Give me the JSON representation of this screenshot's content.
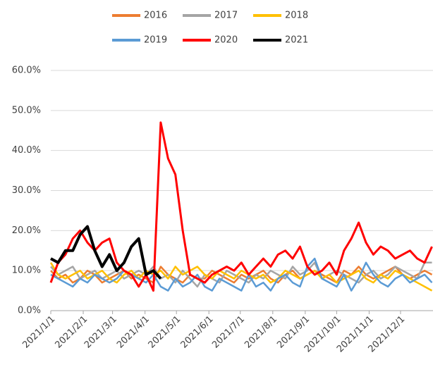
{
  "chart_data": {
    "type": "line",
    "x": [
      0,
      7,
      14,
      21,
      28,
      35,
      42,
      49,
      56,
      63,
      70,
      77,
      84,
      91,
      98,
      105,
      112,
      119,
      126,
      133,
      140,
      147,
      154,
      161,
      168,
      175,
      182,
      189,
      196,
      203,
      210,
      217,
      224,
      231,
      238,
      245,
      252,
      259,
      266,
      273,
      280,
      287,
      294,
      301,
      308,
      315,
      322,
      329,
      336,
      343,
      350,
      357,
      364
    ],
    "xlim": [
      0,
      365
    ],
    "xticks": [
      {
        "value": 0,
        "label": "2021/1/1"
      },
      {
        "value": 31,
        "label": "2021/2/1"
      },
      {
        "value": 59,
        "label": "2021/3/1"
      },
      {
        "value": 90,
        "label": "2021/4/1"
      },
      {
        "value": 120,
        "label": "2021/5/1"
      },
      {
        "value": 151,
        "label": "2021/6/1"
      },
      {
        "value": 181,
        "label": "2021/7/1"
      },
      {
        "value": 212,
        "label": "2021/8/1"
      },
      {
        "value": 243,
        "label": "2021/9/1"
      },
      {
        "value": 273,
        "label": "2021/10/1"
      },
      {
        "value": 304,
        "label": "2021/11/1"
      },
      {
        "value": 334,
        "label": "2021/12/1"
      }
    ],
    "ylim": [
      0,
      60
    ],
    "yticks": [
      {
        "value": 0,
        "label": "0.0%"
      },
      {
        "value": 10,
        "label": "10.0%"
      },
      {
        "value": 20,
        "label": "20.0%"
      },
      {
        "value": 30,
        "label": "30.0%"
      },
      {
        "value": 40,
        "label": "40.0%"
      },
      {
        "value": 50,
        "label": "50.0%"
      },
      {
        "value": 60,
        "label": "60.0%"
      }
    ],
    "grid": true,
    "legend": "top",
    "series": [
      {
        "name": "2016",
        "color": "#ED7D31",
        "values": [
          10,
          8,
          9,
          7,
          8,
          10,
          9,
          7,
          8,
          9,
          10,
          8,
          9,
          8,
          7,
          11,
          9,
          8,
          7,
          9,
          8,
          8,
          10,
          9,
          8,
          7,
          9,
          8,
          9,
          10,
          8,
          7,
          9,
          10,
          8,
          9,
          10,
          9,
          8,
          7,
          10,
          9,
          11,
          9,
          8,
          9,
          10,
          11,
          9,
          8,
          9,
          10,
          9
        ]
      },
      {
        "name": "2017",
        "color": "#A5A5A5",
        "values": [
          11,
          9,
          10,
          11,
          8,
          9,
          10,
          8,
          9,
          10,
          8,
          9,
          10,
          9,
          11,
          8,
          9,
          7,
          10,
          8,
          6,
          9,
          8,
          7,
          10,
          9,
          8,
          7,
          9,
          8,
          10,
          9,
          8,
          11,
          9,
          10,
          12,
          8,
          9,
          10,
          9,
          8,
          7,
          9,
          10,
          8,
          9,
          11,
          10,
          9,
          8,
          12,
          12
        ]
      },
      {
        "name": "2018",
        "color": "#FFC000",
        "values": [
          12,
          9,
          8,
          9,
          10,
          8,
          9,
          10,
          8,
          7,
          9,
          10,
          8,
          10,
          9,
          10,
          8,
          11,
          9,
          10,
          11,
          9,
          8,
          10,
          9,
          8,
          10,
          9,
          8,
          9,
          7,
          8,
          10,
          9,
          8,
          9,
          10,
          8,
          9,
          7,
          8,
          9,
          10,
          8,
          7,
          9,
          8,
          10,
          9,
          8,
          7,
          6,
          5
        ]
      },
      {
        "name": "2019",
        "color": "#5B9BD5",
        "values": [
          9,
          8,
          7,
          6,
          8,
          7,
          9,
          8,
          7,
          8,
          10,
          9,
          8,
          7,
          9,
          6,
          5,
          8,
          6,
          7,
          9,
          6,
          5,
          8,
          7,
          6,
          5,
          9,
          6,
          7,
          5,
          8,
          9,
          7,
          6,
          11,
          13,
          8,
          7,
          6,
          9,
          5,
          8,
          12,
          9,
          7,
          6,
          8,
          9,
          7,
          8,
          9,
          7
        ]
      },
      {
        "name": "2020",
        "color": "#FF0000",
        "values": [
          7,
          12,
          14,
          18,
          20,
          17,
          15,
          17,
          18,
          12,
          10,
          9,
          6,
          9,
          5,
          47,
          38,
          34,
          20,
          9,
          8,
          7,
          9,
          10,
          11,
          10,
          12,
          9,
          11,
          13,
          11,
          14,
          15,
          13,
          16,
          11,
          9,
          10,
          12,
          9,
          15,
          18,
          22,
          17,
          14,
          16,
          15,
          13,
          14,
          15,
          13,
          12,
          16
        ]
      },
      {
        "name": "2021",
        "color": "#000000",
        "values": [
          13,
          12,
          15,
          15,
          19,
          21,
          15,
          11,
          14,
          10,
          12,
          16,
          18,
          9,
          10,
          8,
          null,
          null,
          null,
          null,
          null,
          null,
          null,
          null,
          null,
          null,
          null,
          null,
          null,
          null,
          null,
          null,
          null,
          null,
          null,
          null,
          null,
          null,
          null,
          null,
          null,
          null,
          null,
          null,
          null,
          null,
          null,
          null,
          null,
          null,
          null,
          null,
          null
        ]
      }
    ]
  }
}
